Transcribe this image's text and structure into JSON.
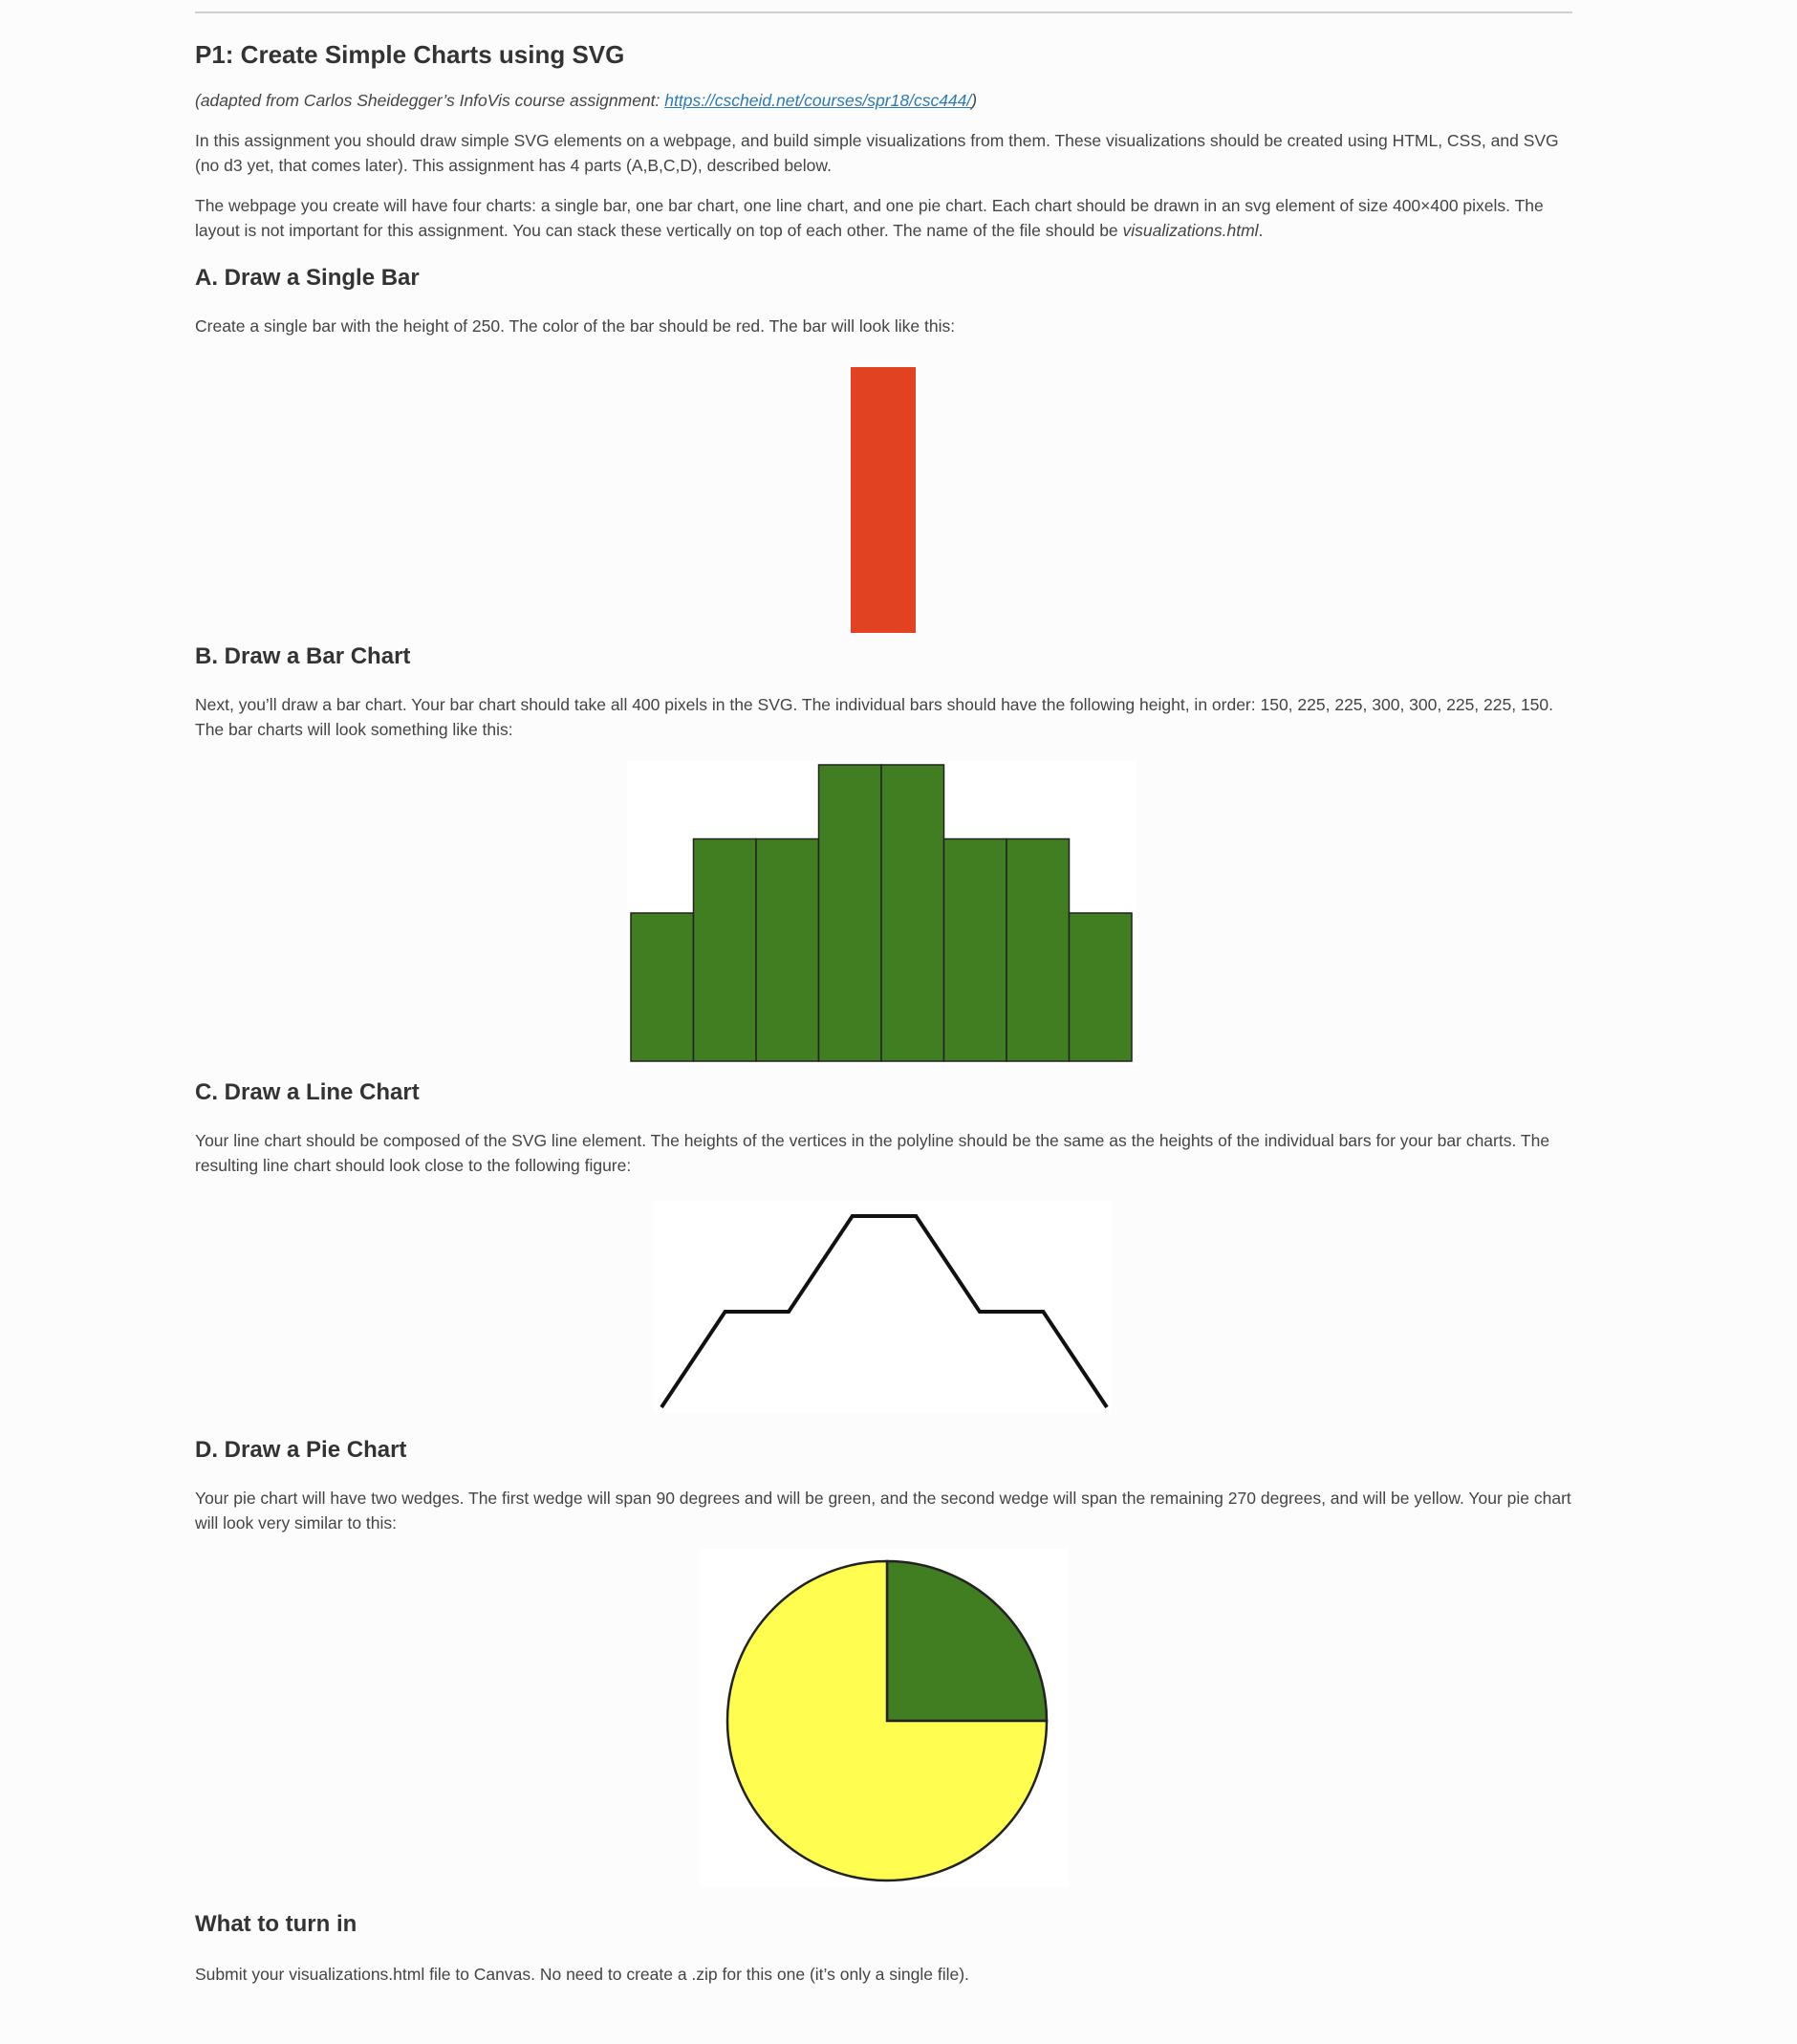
{
  "title": "P1: Create Simple Charts using SVG",
  "credit": {
    "prefix": "(adapted from Carlos Sheidegger’s InfoVis course assignment: ",
    "link_text": "https://cscheid.net/courses/spr18/csc444/",
    "suffix": ")"
  },
  "intro": "In this assignment you should draw simple SVG elements on a webpage, and build simple visualizations from them. These visualizations should be created using HTML, CSS, and SVG (no d3 yet, that comes later). This assignment has 4 parts (A,B,C,D), described below.",
  "layout_text": {
    "before": "The webpage you create will have four charts: a single bar, one bar chart, one line chart, and one pie chart. Each chart should be drawn in an svg element of size 400×400 pixels. The layout is not important for this assignment. You can stack these vertically on top of each other. The name of the file should be ",
    "filename": "visualizations.html",
    "after": "."
  },
  "sections": {
    "a": {
      "heading": "A. Draw a Single Bar",
      "text": "Create a single bar with the height of 250. The color of the bar should be red. The bar will look like this:"
    },
    "b": {
      "heading": "B. Draw a Bar Chart",
      "text": "Next, you’ll draw a bar chart. Your bar chart should take all 400 pixels in the SVG. The individual bars should have the following height, in order: 150, 225, 225, 300, 300, 225, 225, 150. The bar charts will look something like this:"
    },
    "c": {
      "heading": "C. Draw a Line Chart",
      "text": "Your line chart should be composed of the SVG line element. The heights of the vertices in the polyline should be the same as the heights of the individual bars for your bar charts. The resulting line chart should look close to the following figure:"
    },
    "d": {
      "heading": "D. Draw a Pie Chart",
      "text": "Your pie chart will have two wedges. The first wedge will span 90 degrees and will be green, and the second wedge will span the remaining 270 degrees, and will be yellow. Your pie chart will look very similar to this:"
    },
    "turn_in": {
      "heading": "What to turn in",
      "text": "Submit your visualizations.html file to Canvas. No need to create a .zip for this one (it’s only a single file)."
    }
  },
  "colors": {
    "red_bar": "#e04222",
    "green": "#417d21",
    "yellow": "#fffe50",
    "stroke": "#222222"
  },
  "chart_data": [
    {
      "type": "bar",
      "values": [
        250
      ],
      "ylim": [
        0,
        250
      ],
      "color": "#e04222"
    },
    {
      "type": "bar",
      "values": [
        150,
        225,
        225,
        300,
        300,
        225,
        225,
        150
      ],
      "ylim": [
        0,
        300
      ],
      "color": "#417d21"
    },
    {
      "type": "line",
      "values": [
        150,
        225,
        225,
        300,
        300,
        225,
        225,
        150
      ],
      "ylim": [
        150,
        300
      ],
      "color": "#111111"
    },
    {
      "type": "pie",
      "values": [
        90,
        270
      ],
      "colors": [
        "#417d21",
        "#fffe50"
      ]
    }
  ]
}
